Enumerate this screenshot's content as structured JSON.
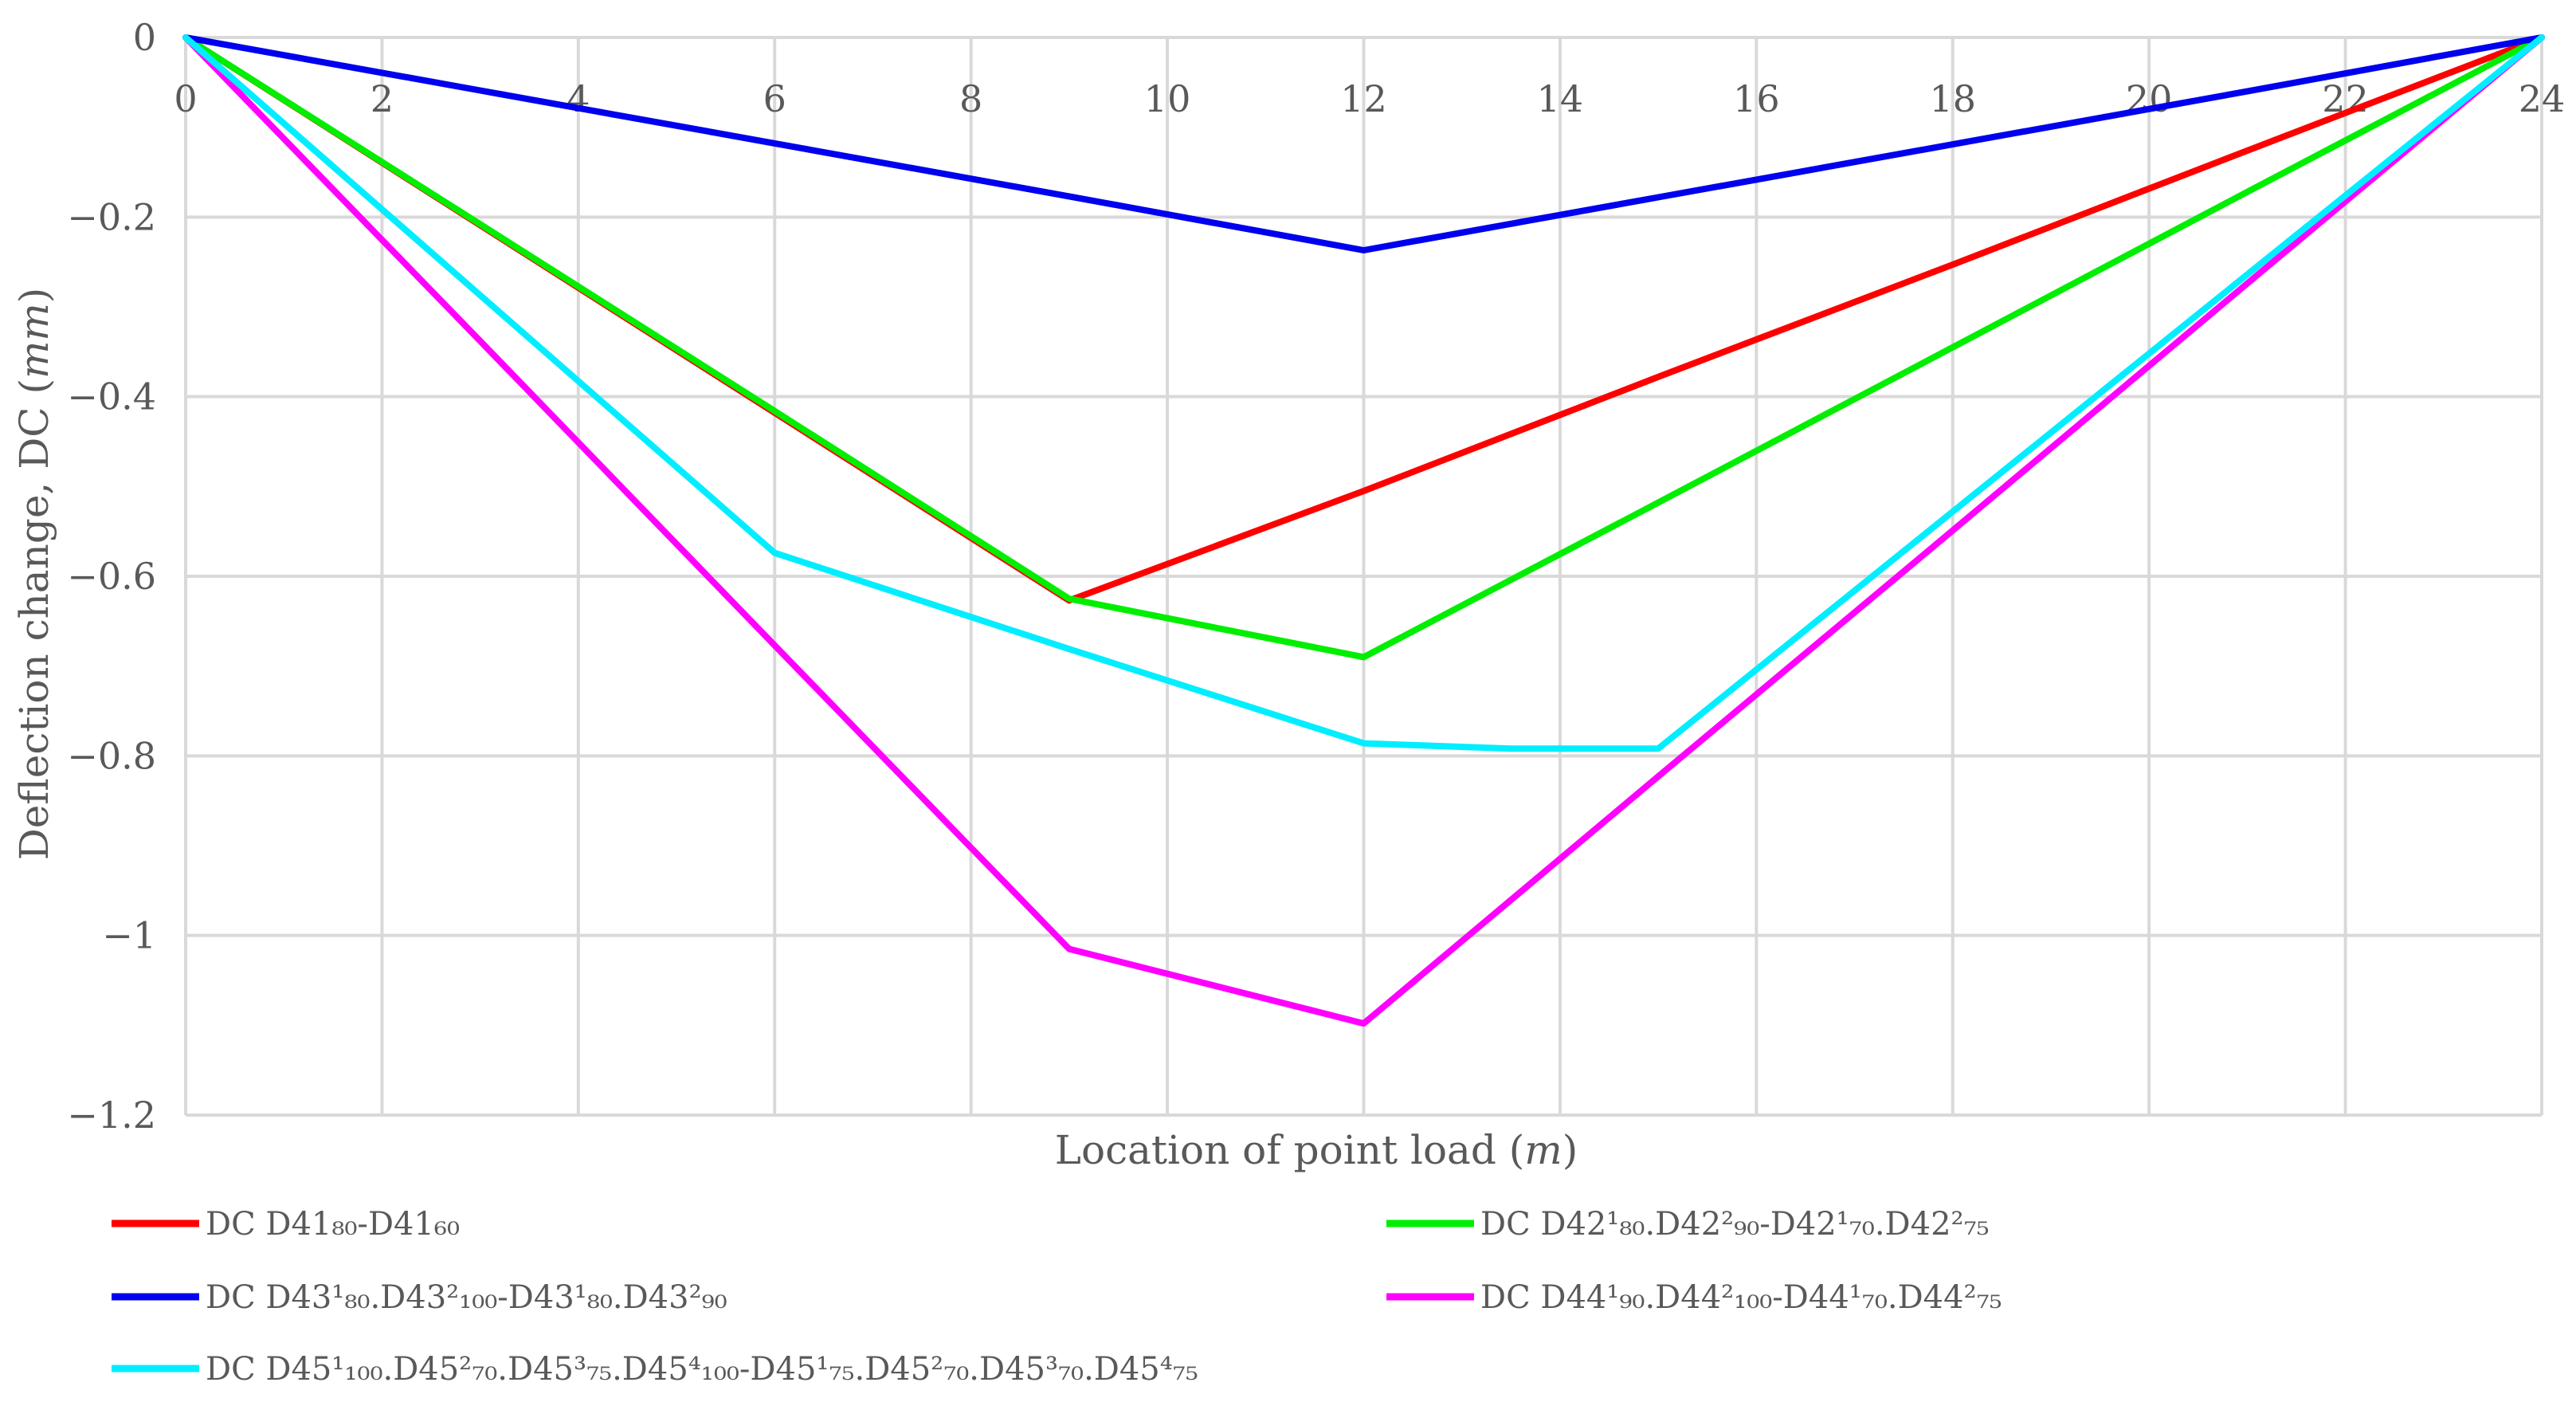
{
  "chart_data": {
    "type": "line",
    "title": "",
    "xlabel": "Location of point load (",
    "xlabel_unit": "m",
    "ylabel": "Deflection change, DC (",
    "ylabel_unit": "mm",
    "xlim": [
      0,
      24
    ],
    "ylim": [
      -1.2,
      0
    ],
    "grid": true,
    "legend_position": "bottom",
    "x_ticks": [
      "0",
      "2",
      "4",
      "6",
      "8",
      "10",
      "12",
      "14",
      "16",
      "18",
      "20",
      "22",
      "24"
    ],
    "y_ticks": [
      "0",
      "−0.2",
      "−0.4",
      "−0.6",
      "−0.8",
      "−1",
      "−1.2"
    ],
    "series": [
      {
        "name": "DC D41₈₀-D41₆₀",
        "color": "#ff0000",
        "x": [
          0,
          3,
          6,
          9,
          12,
          15,
          18,
          21,
          24
        ],
        "y": [
          0,
          -0.209,
          -0.418,
          -0.627,
          -0.505,
          -0.378,
          -0.253,
          -0.126,
          0
        ]
      },
      {
        "name": "DC D42¹₈₀.D42²₉₀-D42¹₇₀.D42²₇₅",
        "color": "#00ee00",
        "x": [
          0,
          3,
          6,
          9,
          12,
          15,
          18,
          21,
          24
        ],
        "y": [
          0,
          -0.208,
          -0.416,
          -0.625,
          -0.69,
          -0.518,
          -0.345,
          -0.172,
          0
        ]
      },
      {
        "name": "DC D43¹₈₀.D43²₁₀₀-D43¹₈₀.D43²₉₀",
        "color": "#0000ee",
        "x": [
          0,
          3,
          6,
          9,
          12,
          15,
          18,
          21,
          24
        ],
        "y": [
          0,
          -0.059,
          -0.118,
          -0.177,
          -0.237,
          -0.178,
          -0.119,
          -0.06,
          0
        ]
      },
      {
        "name": "DC D44¹₉₀.D44²₁₀₀-D44¹₇₀.D44²₇₅",
        "color": "#ff00ff",
        "x": [
          0,
          3,
          6,
          9,
          12,
          15,
          18,
          21,
          24
        ],
        "y": [
          0,
          -0.338,
          -0.677,
          -1.015,
          -1.098,
          -0.823,
          -0.549,
          -0.274,
          0
        ]
      },
      {
        "name": "DC D45¹₁₀₀.D45²₇₀.D45³₇₅.D45⁴₁₀₀-D45¹₇₅.D45²₇₀.D45³₇₀.D45⁴₇₅",
        "color": "#00eeff",
        "x": [
          0,
          3,
          6,
          9,
          12,
          13.5,
          15,
          18,
          21,
          24
        ],
        "y": [
          0,
          -0.287,
          -0.574,
          -0.681,
          -0.786,
          -0.792,
          -0.792,
          -0.528,
          -0.264,
          0
        ]
      }
    ]
  }
}
